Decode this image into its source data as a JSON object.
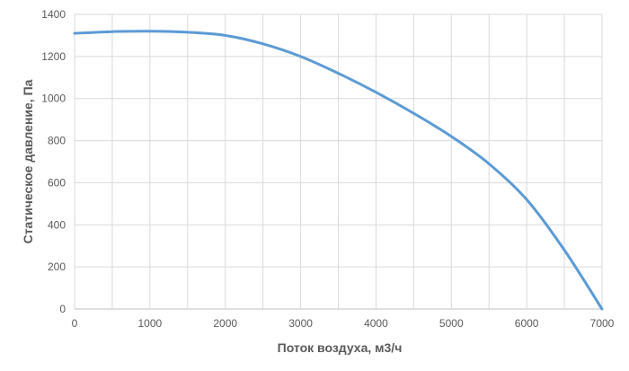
{
  "chart_data": {
    "type": "line",
    "xlabel": "Поток воздуха, м3/ч",
    "ylabel": "Статическое давление, Па",
    "xlim": [
      0,
      7000
    ],
    "ylim": [
      0,
      1400
    ],
    "xticks": [
      0,
      500,
      1000,
      1500,
      2000,
      2500,
      3000,
      3500,
      4000,
      4500,
      5000,
      5500,
      6000,
      6500,
      7000
    ],
    "xtick_labels": [
      "0",
      "",
      "1000",
      "",
      "2000",
      "",
      "3000",
      "",
      "4000",
      "",
      "5000",
      "",
      "6000",
      "",
      "7000"
    ],
    "yticks": [
      0,
      200,
      400,
      600,
      800,
      1000,
      1200,
      1400
    ],
    "ytick_labels": [
      "0",
      "200",
      "400",
      "600",
      "800",
      "1000",
      "1200",
      "1400"
    ],
    "grid": true,
    "series": [
      {
        "color": "#5b9bd5",
        "x": [
          0,
          500,
          1000,
          1500,
          2000,
          2500,
          3000,
          3500,
          4000,
          4500,
          5000,
          5500,
          6000,
          6500,
          7000
        ],
        "y": [
          1310,
          1318,
          1320,
          1315,
          1300,
          1260,
          1200,
          1120,
          1030,
          930,
          820,
          690,
          520,
          280,
          0
        ]
      }
    ]
  }
}
